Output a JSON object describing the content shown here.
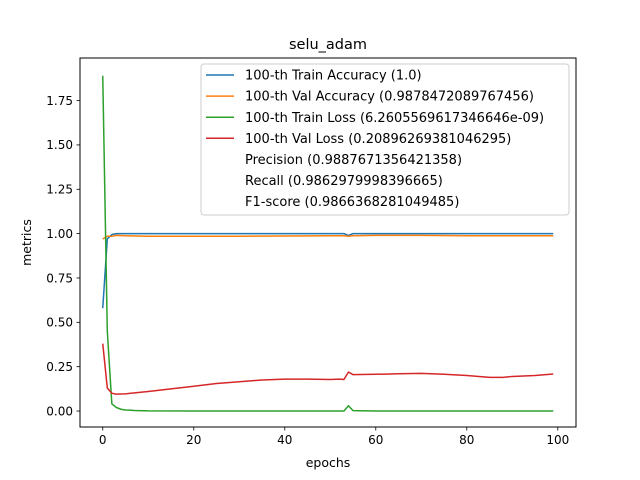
{
  "chart_data": {
    "type": "line",
    "title": "selu_adam",
    "xlabel": "epochs",
    "ylabel": "metrics",
    "xlim": [
      -5,
      104
    ],
    "ylim": [
      -0.09,
      1.99
    ],
    "xticks": [
      0,
      20,
      40,
      60,
      80,
      100
    ],
    "xtick_labels": [
      "0",
      "20",
      "40",
      "60",
      "80",
      "100"
    ],
    "yticks": [
      0.0,
      0.25,
      0.5,
      0.75,
      1.0,
      1.25,
      1.5,
      1.75
    ],
    "ytick_labels": [
      "0.00",
      "0.25",
      "0.50",
      "0.75",
      "1.00",
      "1.25",
      "1.50",
      "1.75"
    ],
    "grid": false,
    "legend_position": "top-right",
    "series": [
      {
        "name": "100-th Train Accuracy (1.0)",
        "color": "#1f77b4",
        "x": [
          0,
          1,
          2,
          3,
          5,
          10,
          20,
          30,
          40,
          50,
          53,
          54,
          55,
          60,
          70,
          80,
          90,
          99
        ],
        "y": [
          0.58,
          0.97,
          0.995,
          1.0,
          1.0,
          1.0,
          1.0,
          1.0,
          1.0,
          1.0,
          1.0,
          0.99,
          1.0,
          1.0,
          1.0,
          1.0,
          1.0,
          1.0
        ]
      },
      {
        "name": "100-th Val Accuracy (0.9878472089767456)",
        "color": "#ff7f0e",
        "x": [
          0,
          1,
          2,
          3,
          5,
          10,
          20,
          30,
          40,
          50,
          53,
          54,
          55,
          60,
          70,
          80,
          90,
          99
        ],
        "y": [
          0.97,
          0.985,
          0.985,
          0.99,
          0.988,
          0.985,
          0.985,
          0.985,
          0.987,
          0.988,
          0.988,
          0.985,
          0.988,
          0.99,
          0.99,
          0.988,
          0.988,
          0.988
        ]
      },
      {
        "name": "100-th Train Loss (6.2605569617346646e-09)",
        "color": "#2ca02c",
        "x": [
          0,
          1,
          2,
          3,
          4,
          5,
          7,
          10,
          20,
          30,
          40,
          50,
          53,
          54,
          55,
          60,
          70,
          80,
          90,
          99
        ],
        "y": [
          1.89,
          0.45,
          0.04,
          0.02,
          0.01,
          0.006,
          0.003,
          0.001,
          0.0,
          0.0,
          0.0,
          0.0,
          0.0,
          0.03,
          0.002,
          0.0,
          0.0,
          0.0,
          0.0,
          0.0
        ]
      },
      {
        "name": "100-th Val Loss (0.20896269381046295)",
        "color": "#d62728",
        "x": [
          0,
          1,
          2,
          3,
          5,
          10,
          15,
          20,
          25,
          30,
          35,
          40,
          45,
          50,
          52,
          53,
          54,
          55,
          60,
          65,
          70,
          75,
          80,
          85,
          88,
          90,
          95,
          99
        ],
        "y": [
          0.38,
          0.13,
          0.1,
          0.095,
          0.097,
          0.11,
          0.125,
          0.14,
          0.155,
          0.165,
          0.175,
          0.18,
          0.18,
          0.178,
          0.18,
          0.178,
          0.22,
          0.205,
          0.207,
          0.21,
          0.212,
          0.207,
          0.2,
          0.19,
          0.19,
          0.195,
          0.2,
          0.209
        ]
      }
    ],
    "legend_extra": [
      "Precision (0.9887671356421358)",
      "Recall (0.9862979998396665)",
      "F1-score (0.9866368281049485)"
    ]
  }
}
